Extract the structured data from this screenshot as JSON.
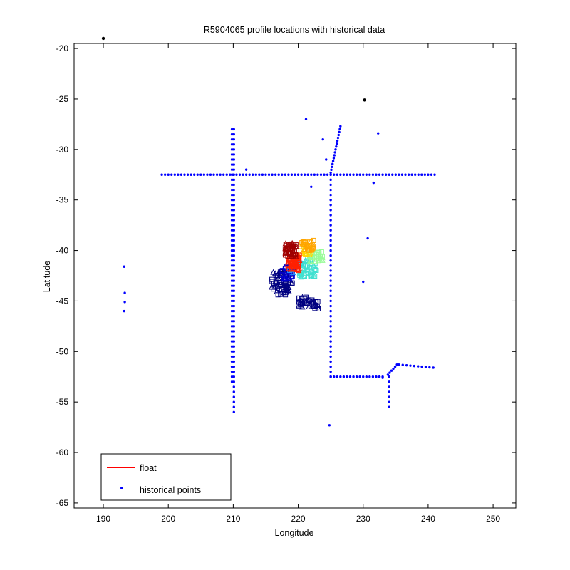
{
  "chart_data": {
    "type": "scatter",
    "title": "R5904065 profile locations with historical data",
    "xlabel": "Longitude",
    "ylabel": "Latitude",
    "xlim": [
      185.5,
      253.5
    ],
    "ylim": [
      -65.5,
      -19.5
    ],
    "xticks": [
      190,
      200,
      210,
      220,
      230,
      240,
      250
    ],
    "yticks": [
      -20,
      -25,
      -30,
      -35,
      -40,
      -45,
      -50,
      -55,
      -60,
      -65
    ],
    "grid": false,
    "legend": {
      "position": "bottom-left",
      "entries": [
        {
          "label": "float",
          "color": "#ff0000",
          "marker": "line"
        },
        {
          "label": "historical points",
          "color": "#0000ff",
          "marker": "dot"
        }
      ]
    },
    "colors": {
      "historical": "#0000ff",
      "black_marker": "#000000",
      "float_line": "#ff0000"
    },
    "series": [
      {
        "name": "historical points",
        "color": "#0000ff",
        "segments": [
          {
            "from": [
              199,
              -32.5
            ],
            "to": [
              241,
              -32.5
            ],
            "step": 0.5
          },
          {
            "from": [
              209.8,
              -28
            ],
            "to": [
              209.8,
              -53
            ],
            "step": 0.5
          },
          {
            "from": [
              210.1,
              -28
            ],
            "to": [
              210.1,
              -56
            ],
            "step": 0.5
          },
          {
            "from": [
              225,
              -32.5
            ],
            "to": [
              225,
              -52.5
            ],
            "step": 0.5
          },
          {
            "from": [
              225,
              -52.5
            ],
            "to": [
              233,
              -52.5
            ],
            "step": 0.5
          },
          {
            "from": [
              234,
              -52.5
            ],
            "to": [
              234,
              -55.5
            ],
            "step": 0.5
          },
          {
            "from": [
              225,
              -32.3
            ],
            "to": [
              226.5,
              -27.7
            ],
            "step": 0.3
          },
          {
            "from": [
              235.5,
              -51.3
            ],
            "to": [
              240.8,
              -51.6
            ],
            "step": 0.6
          },
          {
            "from": [
              233.8,
              -52.3
            ],
            "to": [
              235.2,
              -51.3
            ],
            "step": 0.35
          }
        ],
        "points": [
          [
            193.2,
            -41.6
          ],
          [
            193.3,
            -44.2
          ],
          [
            193.3,
            -45.1
          ],
          [
            193.2,
            -46
          ],
          [
            212,
            -32
          ],
          [
            221.2,
            -27
          ],
          [
            223.8,
            -29
          ],
          [
            224.3,
            -31
          ],
          [
            222,
            -33.7
          ],
          [
            232.3,
            -28.4
          ],
          [
            231.6,
            -33.3
          ],
          [
            230.7,
            -38.8
          ],
          [
            230,
            -43.1
          ],
          [
            224.8,
            -57.3
          ],
          [
            233,
            -52.6
          ],
          [
            232.5,
            -52.5
          ]
        ]
      },
      {
        "name": "",
        "color": "#000000",
        "points": [
          [
            190,
            -19
          ],
          [
            230.2,
            -25.1
          ]
        ]
      },
      {
        "name": "float",
        "color": "#ff0000",
        "clusters": [
          {
            "color": "#000080",
            "center": [
              217.5,
              -43.2
            ],
            "spread": [
              1.6,
              1.2
            ],
            "count": 70
          },
          {
            "color": "#000080",
            "center": [
              221,
              -45.1
            ],
            "spread": [
              1.2,
              0.5
            ],
            "count": 30
          },
          {
            "color": "#000080",
            "center": [
              222.5,
              -45.4
            ],
            "spread": [
              0.6,
              0.4
            ],
            "count": 18
          },
          {
            "color": "#0000cd",
            "center": [
              218.5,
              -42.2
            ],
            "spread": [
              1.0,
              0.7
            ],
            "count": 25
          },
          {
            "color": "#1e90ff",
            "center": [
              219.5,
              -41.5
            ],
            "spread": [
              0.9,
              0.7
            ],
            "count": 20
          },
          {
            "color": "#40e0d0",
            "center": [
              221.5,
              -41.8
            ],
            "spread": [
              1.3,
              0.9
            ],
            "count": 45
          },
          {
            "color": "#98fb98",
            "center": [
              222.6,
              -40.6
            ],
            "spread": [
              1.2,
              0.5
            ],
            "count": 30
          },
          {
            "color": "#ffd700",
            "center": [
              221.2,
              -39.9
            ],
            "spread": [
              0.8,
              0.5
            ],
            "count": 18
          },
          {
            "color": "#ffa500",
            "center": [
              221.5,
              -39.5
            ],
            "spread": [
              1.1,
              0.5
            ],
            "count": 30
          },
          {
            "color": "#ff2000",
            "center": [
              219.3,
              -41.2
            ],
            "spread": [
              0.9,
              0.8
            ],
            "count": 55
          },
          {
            "color": "#a00000",
            "center": [
              218.9,
              -39.9
            ],
            "spread": [
              0.9,
              0.7
            ],
            "count": 50
          }
        ]
      }
    ]
  }
}
